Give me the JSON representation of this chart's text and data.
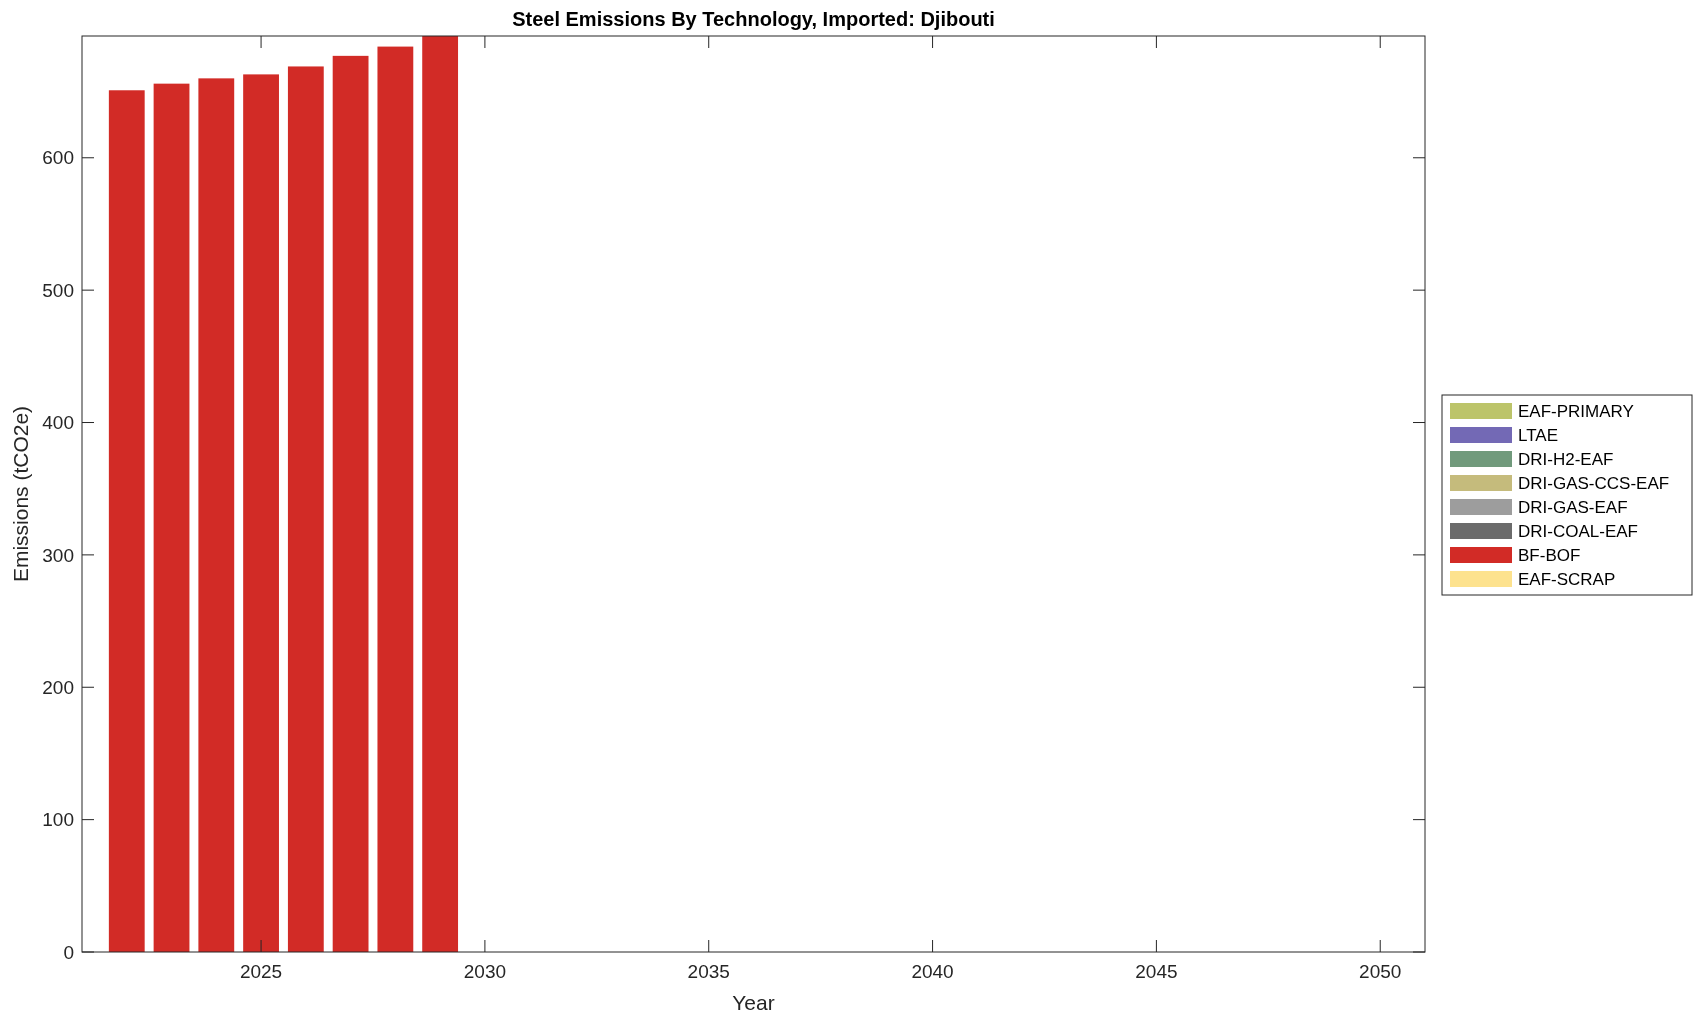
{
  "chart_data": {
    "type": "bar",
    "title": "Steel Emissions By Technology, Imported: Djibouti",
    "xlabel": "Year",
    "ylabel": "Emissions (tCO2e)",
    "stacked": true,
    "x": [
      2022,
      2023,
      2024,
      2025,
      2026,
      2027,
      2028,
      2029
    ],
    "series": [
      {
        "name": "EAF-SCRAP",
        "color": "#fde28e",
        "values": [
          0,
          0,
          0,
          0,
          0,
          0,
          0,
          0
        ]
      },
      {
        "name": "BF-BOF",
        "color": "#d22b26",
        "values": [
          651,
          656,
          660,
          663,
          669,
          677,
          684,
          692
        ]
      },
      {
        "name": "DRI-COAL-EAF",
        "color": "#6b6b6b",
        "values": [
          0,
          0,
          0,
          0,
          0,
          0,
          0,
          0
        ]
      },
      {
        "name": "DRI-GAS-EAF",
        "color": "#9d9d9d",
        "values": [
          0,
          0,
          0,
          0,
          0,
          0,
          0,
          0
        ]
      },
      {
        "name": "DRI-GAS-CCS-EAF",
        "color": "#c5bb7c",
        "values": [
          0,
          0,
          0,
          0,
          0,
          0,
          0,
          0
        ]
      },
      {
        "name": "DRI-H2-EAF",
        "color": "#719a7c",
        "values": [
          0,
          0,
          0,
          0,
          0,
          0,
          0,
          0
        ]
      },
      {
        "name": "LTAE",
        "color": "#7369b5",
        "values": [
          0,
          0,
          0,
          0,
          0,
          0,
          0,
          0
        ]
      },
      {
        "name": "EAF-PRIMARY",
        "color": "#bcc46a",
        "values": [
          0,
          0,
          0,
          0,
          0,
          0,
          0,
          0
        ]
      }
    ],
    "xlim": [
      2021,
      2051
    ],
    "xticks": [
      2025,
      2030,
      2035,
      2040,
      2045,
      2050
    ],
    "ylim": [
      0,
      692
    ],
    "yticks": [
      0,
      100,
      200,
      300,
      400,
      500,
      600
    ],
    "grid": false,
    "legend": "right"
  }
}
